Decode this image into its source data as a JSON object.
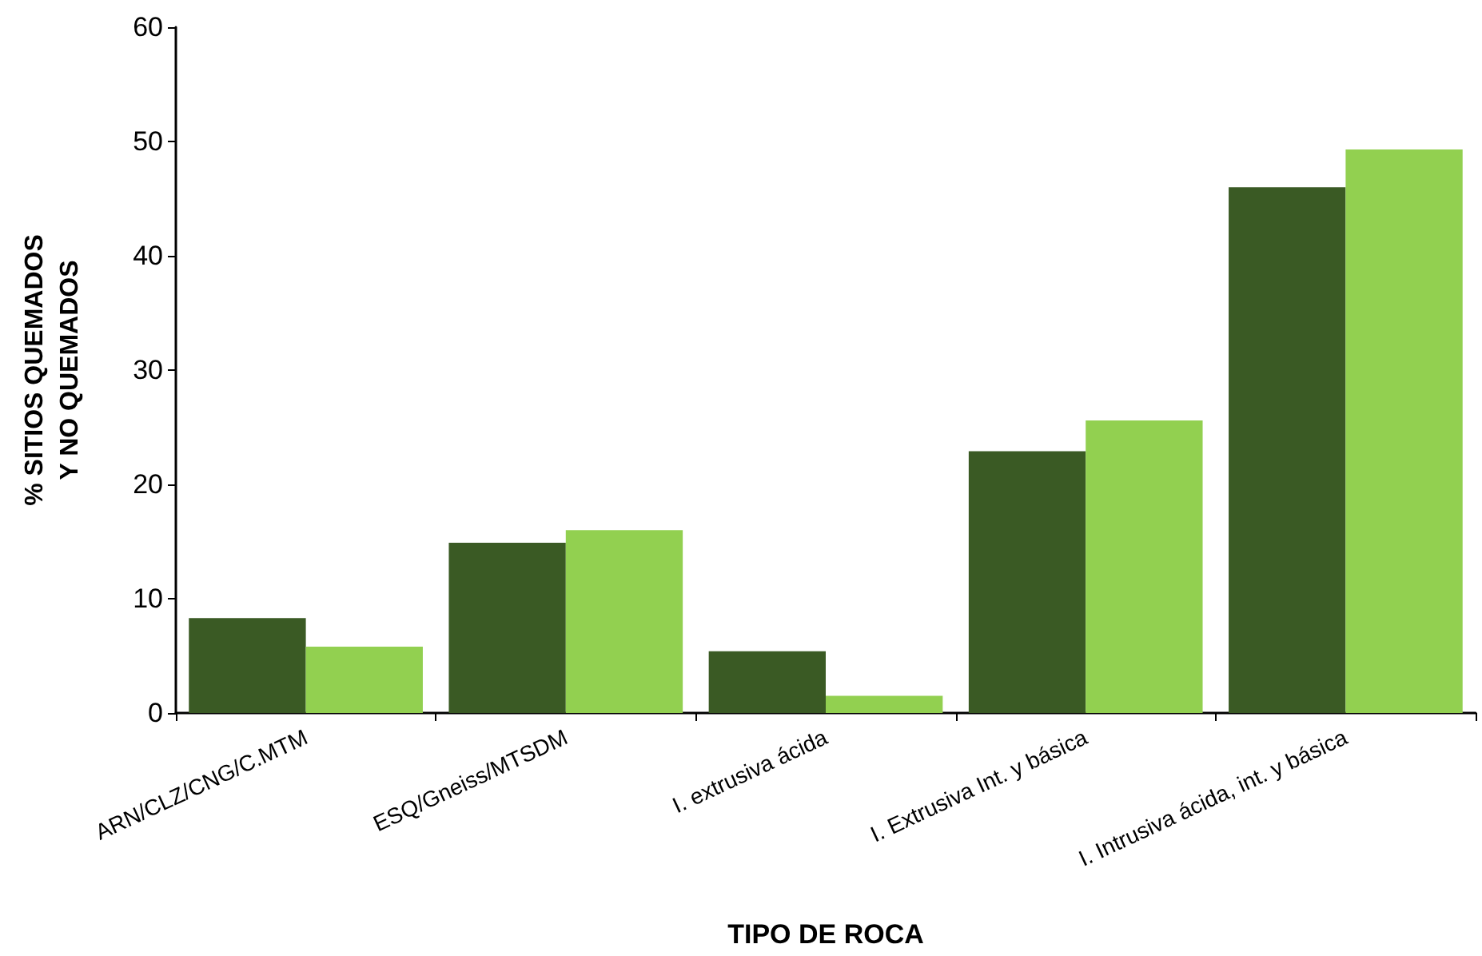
{
  "chart_data": {
    "type": "bar",
    "xlabel": "TIPO DE ROCA",
    "ylabel": "% SITIOS QUEMADOS\nY NO QUEMADOS",
    "categories": [
      "ARN/CLZ/CNG/C.MTM",
      "ESQ/Gneiss/MTSDM",
      "I. extrusiva ácida",
      "I. Extrusiva Int. y básica",
      "I. Intrusiva ácida, int. y básica"
    ],
    "series": [
      {
        "color": "#3a5a24",
        "values": [
          8.3,
          14.9,
          5.4,
          22.9,
          46.0
        ]
      },
      {
        "color": "#92d050",
        "values": [
          5.8,
          16.0,
          1.5,
          25.6,
          49.3
        ]
      }
    ],
    "ylim": [
      0,
      60
    ],
    "yticks": [
      0,
      10,
      20,
      30,
      40,
      50,
      60
    ]
  }
}
